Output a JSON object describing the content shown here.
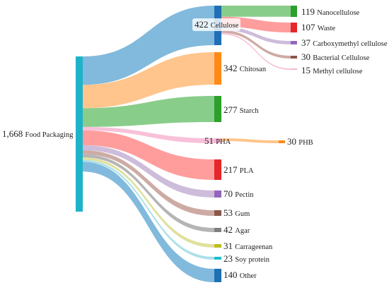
{
  "chart_data": {
    "type": "sankey",
    "title": "",
    "nodes": [
      {
        "id": "food",
        "label": "Food Packaging",
        "value": 1668,
        "value_text": "1,668",
        "color": "#1fb3c9"
      },
      {
        "id": "cellulose",
        "label": "Cellulose",
        "value": 422,
        "value_text": "422",
        "color": "#1f6fb4"
      },
      {
        "id": "chitosan",
        "label": "Chitosan",
        "value": 342,
        "value_text": "342",
        "color": "#ff8a16"
      },
      {
        "id": "starch",
        "label": "Starch",
        "value": 277,
        "value_text": "277",
        "color": "#2ca02c"
      },
      {
        "id": "pha",
        "label": "PHA",
        "value": 51,
        "value_text": "51",
        "color": "#f7b6d2"
      },
      {
        "id": "pla",
        "label": "PLA",
        "value": 217,
        "value_text": "217",
        "color": "#e5262a"
      },
      {
        "id": "pectin",
        "label": "Pectin",
        "value": 70,
        "value_text": "70",
        "color": "#9467bd"
      },
      {
        "id": "gum",
        "label": "Gum",
        "value": 53,
        "value_text": "53",
        "color": "#8c564b"
      },
      {
        "id": "agar",
        "label": "Agar",
        "value": 42,
        "value_text": "42",
        "color": "#7f7f7f"
      },
      {
        "id": "carrageenan",
        "label": "Carrageenan",
        "value": 31,
        "value_text": "31",
        "color": "#bcbd22"
      },
      {
        "id": "soy",
        "label": "Soy protein",
        "value": 23,
        "value_text": "23",
        "color": "#17becf"
      },
      {
        "id": "other",
        "label": "Other",
        "value": 140,
        "value_text": "140",
        "color": "#1f6fb4"
      },
      {
        "id": "nano",
        "label": "Nanocellulose",
        "value": 119,
        "value_text": "119",
        "color": "#2ca02c"
      },
      {
        "id": "waste",
        "label": "Waste",
        "value": 107,
        "value_text": "107",
        "color": "#e5262a"
      },
      {
        "id": "cmc",
        "label": "Carboxymethyl cellulose",
        "value": 37,
        "value_text": "37",
        "color": "#9467bd"
      },
      {
        "id": "bact",
        "label": "Bacterial Cellulose",
        "value": 30,
        "value_text": "30",
        "color": "#8c564b"
      },
      {
        "id": "methyl",
        "label": "Methyl cellulose",
        "value": 15,
        "value_text": "15",
        "color": "#f7b6d2"
      },
      {
        "id": "phb",
        "label": "PHB",
        "value": 30,
        "value_text": "30",
        "color": "#ff8a16"
      }
    ],
    "links": [
      {
        "source": "food",
        "target": "cellulose",
        "value": 422,
        "color": "#6baed6"
      },
      {
        "source": "food",
        "target": "chitosan",
        "value": 342,
        "color": "#ffbb78"
      },
      {
        "source": "food",
        "target": "starch",
        "value": 277,
        "color": "#74c476"
      },
      {
        "source": "food",
        "target": "pha",
        "value": 51,
        "color": "#f7b6d2"
      },
      {
        "source": "food",
        "target": "pla",
        "value": 217,
        "color": "#ff8c8c"
      },
      {
        "source": "food",
        "target": "pectin",
        "value": 70,
        "color": "#c5b0d5"
      },
      {
        "source": "food",
        "target": "gum",
        "value": 53,
        "color": "#c49c94"
      },
      {
        "source": "food",
        "target": "agar",
        "value": 42,
        "color": "#a8a8a8"
      },
      {
        "source": "food",
        "target": "carrageenan",
        "value": 31,
        "color": "#dbdb8d"
      },
      {
        "source": "food",
        "target": "soy",
        "value": 23,
        "color": "#9edae5"
      },
      {
        "source": "food",
        "target": "other",
        "value": 140,
        "color": "#6baed6"
      },
      {
        "source": "cellulose",
        "target": "nano",
        "value": 119,
        "color": "#74c476"
      },
      {
        "source": "cellulose",
        "target": "waste",
        "value": 107,
        "color": "#ff8c8c"
      },
      {
        "source": "cellulose",
        "target": "cmc",
        "value": 37,
        "color": "#c5b0d5"
      },
      {
        "source": "cellulose",
        "target": "bact",
        "value": 30,
        "color": "#c49c94"
      },
      {
        "source": "cellulose",
        "target": "methyl",
        "value": 15,
        "color": "#f7b6d2"
      },
      {
        "source": "pha",
        "target": "phb",
        "value": 30,
        "color": "#ffbb78"
      }
    ]
  }
}
